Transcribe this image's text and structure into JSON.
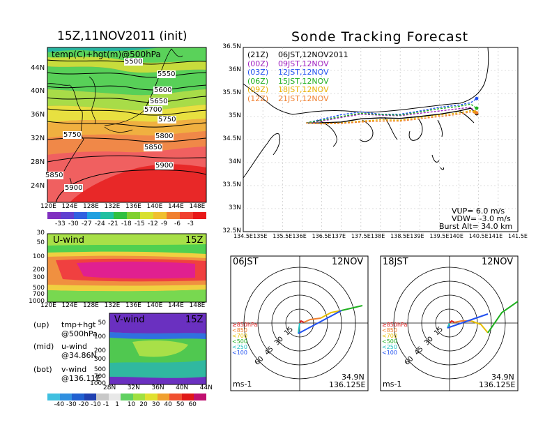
{
  "left_title": "15Z,11NOV2011 (init)",
  "right_title": "Sonde Tracking Forecast",
  "map_panel": {
    "label": "temp(C)+hgt(m)@500hPa",
    "contours": [
      "5500",
      "5550",
      "5600",
      "5650",
      "5700",
      "5750",
      "5750",
      "5800",
      "5850",
      "5850",
      "5900",
      "5900"
    ],
    "colorbar_ticks": [
      "-33",
      "-30",
      "-27",
      "-24",
      "-21",
      "-18",
      "-15",
      "-12",
      "-9",
      "-6",
      "-3"
    ],
    "lat_ticks": [
      "44N",
      "40N",
      "36N",
      "32N",
      "28N",
      "24N"
    ],
    "lon_ticks": [
      "120E",
      "124E",
      "128E",
      "132E",
      "136E",
      "140E",
      "144E",
      "148E"
    ]
  },
  "u_panel": {
    "label": "U-wind",
    "time": "15Z",
    "p_ticks": [
      "30",
      "50",
      "100",
      "200",
      "300",
      "500",
      "700",
      "1000"
    ],
    "lon_ticks": [
      "120E",
      "124E",
      "128E",
      "132E",
      "136E",
      "140E",
      "144E",
      "148E"
    ]
  },
  "v_panel": {
    "label": "V-wind",
    "time": "15Z",
    "p_ticks": [
      "50",
      "100",
      "200",
      "300",
      "500",
      "700",
      "1000"
    ],
    "lat_ticks": [
      "28N",
      "32N",
      "36N",
      "40N",
      "44N"
    ]
  },
  "legend_text": [
    {
      "a": "(up)",
      "b": "tmp+hgt",
      "c": "@500hPa"
    },
    {
      "a": "(mid)",
      "b": "u-wind",
      "c": "@34.86N"
    },
    {
      "a": "(bot)",
      "b": "v-wind",
      "c": "@136.11E"
    }
  ],
  "wind_colorbar_ticks": [
    "-40",
    "-30",
    "-20",
    "-10",
    "-1",
    "1",
    "10",
    "20",
    "30",
    "40",
    "50",
    "60"
  ],
  "track": {
    "entries": [
      {
        "tag": "(21Z)",
        "text": "06JST,12NOV2011",
        "color": "#000000"
      },
      {
        "tag": "(00Z)",
        "text": "09JST,12NOV",
        "color": "#a020c0"
      },
      {
        "tag": "(03Z)",
        "text": "12JST,12NOV",
        "color": "#2050f0"
      },
      {
        "tag": "(06Z)",
        "text": "15JST,12NOV",
        "color": "#20b020"
      },
      {
        "tag": "(09Z)",
        "text": "18JST,12NOV",
        "color": "#e8b000"
      },
      {
        "tag": "(12Z)",
        "text": "21JST,12NOV",
        "color": "#f08030"
      }
    ],
    "lat_ticks": [
      "36.5N",
      "36N",
      "35.5N",
      "35N",
      "34.5N",
      "34N",
      "33.5N",
      "33N",
      "32.5N"
    ],
    "lon_ticks": [
      "134.5E",
      "135E",
      "135.5E",
      "136E",
      "136.5E",
      "137E",
      "137.5E",
      "138E",
      "138.5E",
      "139E",
      "139.5E",
      "140E",
      "140.5E",
      "141E",
      "141.5E"
    ],
    "vup": "VUP= 6.0 m/s",
    "vdw": "VDW= -3.0 m/s",
    "burst": "Burst Alt= 34.0 km"
  },
  "hodographs": [
    {
      "time": "06JST",
      "date": "12NOV",
      "lat": "34.9N",
      "lon": "136.125E",
      "unit": "ms-1"
    },
    {
      "time": "18JST",
      "date": "12NOV",
      "lat": "34.9N",
      "lon": "136.125E",
      "unit": "ms-1"
    }
  ],
  "ring_labels": [
    "15",
    "30",
    "45",
    "60"
  ],
  "hodo_legend": [
    {
      "text": "≥850hPa",
      "color": "#e02020"
    },
    {
      "text": "<850",
      "color": "#f08030"
    },
    {
      "text": "<700",
      "color": "#e8c000"
    },
    {
      "text": "<500",
      "color": "#20b020"
    },
    {
      "text": "<250",
      "color": "#20c0c0"
    },
    {
      "text": "<100",
      "color": "#2050f0"
    }
  ],
  "chart_data": {
    "type": "line",
    "title": "Sonde Tracking Forecast",
    "xlim": [
      134.5,
      141.5
    ],
    "ylim": [
      32.5,
      36.5
    ],
    "launch": {
      "lon": 136.125,
      "lat": 34.86
    },
    "series": [
      {
        "name": "(21Z) 06JST,12NOV2011",
        "x": [
          136.1,
          136.4,
          137.0,
          137.5,
          138.0,
          138.5,
          139.0,
          139.5,
          140.0,
          140.3,
          140.45
        ],
        "y": [
          34.86,
          34.86,
          34.88,
          34.95,
          34.97,
          34.96,
          35.0,
          35.05,
          35.12,
          35.18,
          35.06
        ]
      },
      {
        "name": "(00Z) 09JST,12NOV",
        "x": [
          136.1,
          136.5,
          137.0,
          137.5,
          138.0,
          138.5,
          139.0,
          139.5,
          140.0,
          140.3,
          140.4
        ],
        "y": [
          34.86,
          34.9,
          34.98,
          35.05,
          35.03,
          35.02,
          35.07,
          35.12,
          35.17,
          35.2,
          35.1
        ]
      },
      {
        "name": "(03Z) 12JST,12NOV",
        "x": [
          136.1,
          136.5,
          137.0,
          137.5,
          138.0,
          138.5,
          139.0,
          139.5,
          140.0,
          140.3,
          140.45
        ],
        "y": [
          34.86,
          34.94,
          35.04,
          35.1,
          35.05,
          35.05,
          35.12,
          35.2,
          35.25,
          35.3,
          35.39
        ]
      },
      {
        "name": "(06Z) 15JST,12NOV",
        "x": [
          136.1,
          136.5,
          137.0,
          137.5,
          138.0,
          138.5,
          139.0,
          139.5,
          140.0,
          140.3,
          140.45
        ],
        "y": [
          34.86,
          34.92,
          35.0,
          35.07,
          35.04,
          35.03,
          35.1,
          35.17,
          35.22,
          35.27,
          35.18
        ]
      },
      {
        "name": "(09Z) 18JST,12NOV",
        "x": [
          136.1,
          136.5,
          137.0,
          137.5,
          138.0,
          138.5,
          139.0,
          139.5,
          140.0,
          140.3,
          140.4
        ],
        "y": [
          34.86,
          34.85,
          34.86,
          34.9,
          34.93,
          34.92,
          34.98,
          35.03,
          35.08,
          35.13,
          35.1
        ]
      },
      {
        "name": "(12Z) 21JST,12NOV",
        "x": [
          136.1,
          136.5,
          137.0,
          137.5,
          138.0,
          138.5,
          139.0,
          139.5,
          140.0,
          140.3,
          140.45
        ],
        "y": [
          34.86,
          34.84,
          34.85,
          34.88,
          34.9,
          34.9,
          34.95,
          35.0,
          35.05,
          35.1,
          35.08
        ]
      }
    ]
  }
}
